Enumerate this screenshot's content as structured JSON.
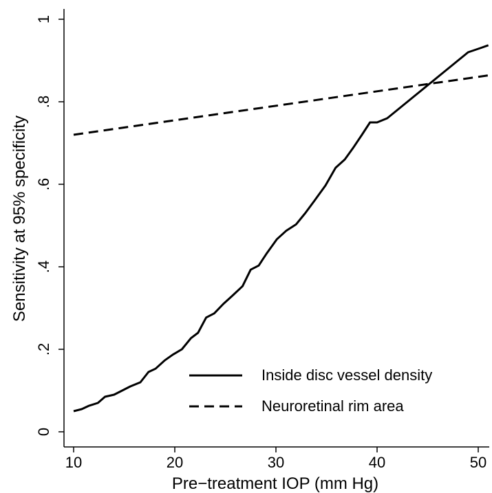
{
  "chart_data": {
    "type": "line",
    "xlabel": "Pre−treatment IOP (mm Hg)",
    "ylabel": "Sensitivity at 95% specificity",
    "xlim": [
      10,
      51
    ],
    "ylim": [
      0,
      1
    ],
    "xticks": [
      10,
      20,
      30,
      40,
      50
    ],
    "xtick_labels": [
      "10",
      "20",
      "30",
      "40",
      "50"
    ],
    "yticks": [
      0,
      0.2,
      0.4,
      0.6,
      0.8,
      1
    ],
    "ytick_labels": [
      "0",
      ".2",
      ".4",
      ".6",
      ".8",
      "1"
    ],
    "grid": false,
    "legend_position": "bottom-right",
    "series": [
      {
        "name": "Inside disc vessel density",
        "line_style": "solid",
        "color": "#000000",
        "x": [
          10,
          10.8,
          11.5,
          12.4,
          13.1,
          14,
          14.8,
          15.6,
          16.6,
          17.4,
          18.1,
          19,
          19.8,
          20.7,
          21.6,
          22.3,
          23.1,
          23.9,
          24.8,
          25.7,
          26.7,
          27.5,
          28.3,
          29.1,
          30.1,
          31,
          32,
          32.9,
          33.8,
          34.9,
          35.9,
          36.8,
          37.6,
          38.5,
          39.3,
          40,
          41,
          42,
          43,
          44,
          45,
          46,
          47,
          48,
          49,
          50.2,
          51
        ],
        "y": [
          0.05,
          0.055,
          0.063,
          0.07,
          0.085,
          0.09,
          0.1,
          0.11,
          0.12,
          0.145,
          0.153,
          0.173,
          0.187,
          0.2,
          0.227,
          0.24,
          0.277,
          0.287,
          0.31,
          0.33,
          0.353,
          0.393,
          0.403,
          0.433,
          0.467,
          0.487,
          0.503,
          0.53,
          0.56,
          0.597,
          0.64,
          0.66,
          0.687,
          0.72,
          0.75,
          0.75,
          0.76,
          0.78,
          0.8,
          0.82,
          0.84,
          0.86,
          0.88,
          0.9,
          0.92,
          0.93,
          0.937
        ]
      },
      {
        "name": "Neuroretinal rim area",
        "line_style": "dashed",
        "color": "#000000",
        "x": [
          10,
          51
        ],
        "y": [
          0.72,
          0.864
        ]
      }
    ]
  }
}
